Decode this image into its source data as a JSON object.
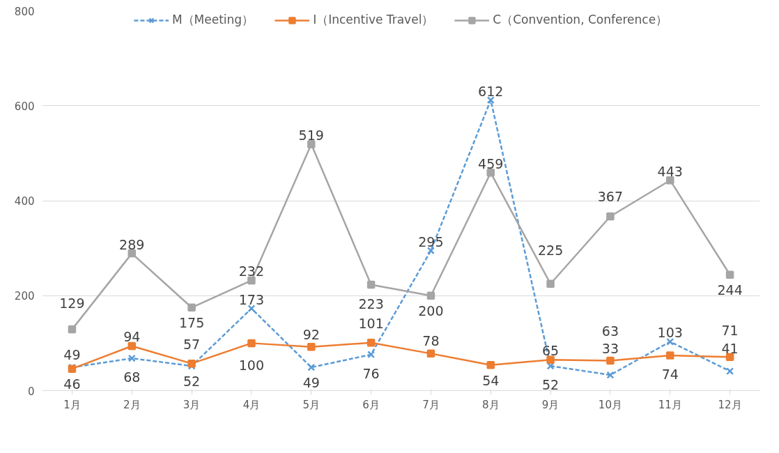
{
  "chart_data": {
    "type": "line",
    "categories": [
      "1月",
      "2月",
      "3月",
      "4月",
      "5月",
      "6月",
      "7月",
      "8月",
      "9月",
      "10月",
      "11月",
      "12月"
    ],
    "series": [
      {
        "name": "M（Meeting）",
        "color": "#5b9bd5",
        "marker": "cross",
        "line_style": "dashed",
        "values": [
          49,
          68,
          52,
          173,
          49,
          76,
          295,
          612,
          52,
          33,
          103,
          41
        ]
      },
      {
        "name": "I（Incentive Travel）",
        "color": "#ed7d31",
        "marker": "square",
        "line_style": "solid",
        "values": [
          46,
          94,
          57,
          100,
          92,
          101,
          78,
          54,
          65,
          63,
          74,
          71
        ]
      },
      {
        "name": "C（Convention, Conference）",
        "color": "#a5a5a5",
        "marker": "square",
        "line_style": "solid",
        "values": [
          129,
          289,
          175,
          232,
          519,
          223,
          200,
          459,
          225,
          367,
          443,
          244
        ]
      }
    ],
    "ylim": [
      0,
      800
    ],
    "yticks": [
      0,
      200,
      400,
      600,
      800
    ],
    "grid": "y",
    "legend": "top",
    "data_labels": true
  }
}
